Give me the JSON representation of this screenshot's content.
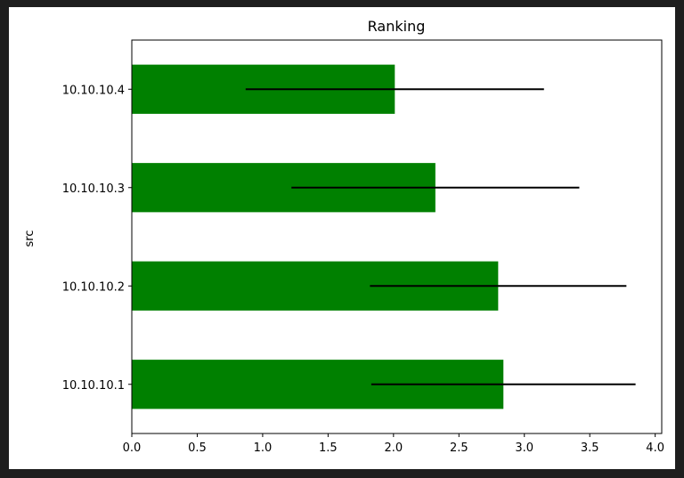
{
  "chart_data": {
    "type": "bar",
    "orientation": "horizontal",
    "title": "Ranking",
    "xlabel": "",
    "ylabel": "src",
    "categories": [
      "10.10.10.1",
      "10.10.10.2",
      "10.10.10.3",
      "10.10.10.4"
    ],
    "values": [
      2.84,
      2.8,
      2.32,
      2.01
    ],
    "error": [
      1.01,
      0.98,
      1.1,
      1.14
    ],
    "xlim": [
      0,
      4.05
    ],
    "xticks": [
      "0.0",
      "0.5",
      "1.0",
      "1.5",
      "2.0",
      "2.5",
      "3.0",
      "3.5",
      "4.0"
    ],
    "bar_color": "#008000",
    "error_color": "#000000",
    "grid": false,
    "legend": "none"
  }
}
